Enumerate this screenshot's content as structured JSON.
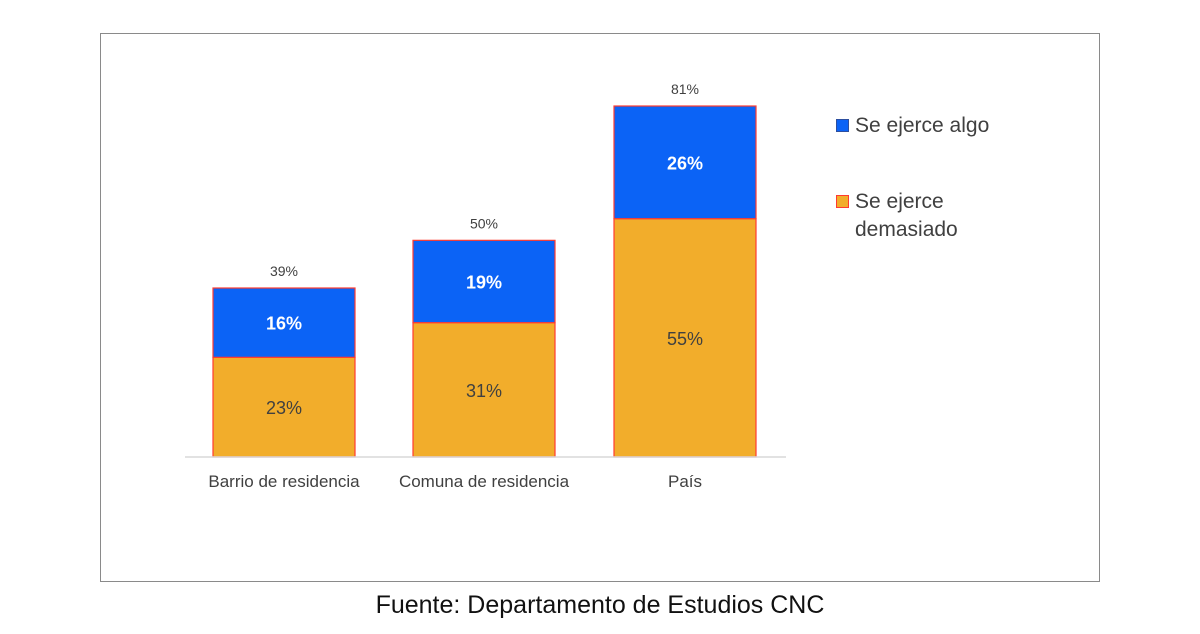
{
  "source_note": "Fuente: Departamento de Estudios CNC",
  "colors": {
    "frame": "#8a8a8a",
    "axis": "#d9d9d9",
    "blue": "#0b63f6",
    "orange": "#f2ad2b",
    "outline": "#ff3b30",
    "text": "#404040",
    "bar_label": "#ffffff",
    "orange_label": "#404040"
  },
  "chart_data": {
    "type": "bar",
    "stacked": true,
    "categories": [
      "Barrio de residencia",
      "Comuna de residencia",
      "País"
    ],
    "series": [
      {
        "name": "Se ejerce demasiado",
        "values": [
          23,
          31,
          55
        ],
        "labels": [
          "23%",
          "31%",
          "55%"
        ],
        "color": "#f2ad2b"
      },
      {
        "name": "Se ejerce algo",
        "values": [
          16,
          19,
          26
        ],
        "labels": [
          "16%",
          "19%",
          "26%"
        ],
        "color": "#0b63f6"
      }
    ],
    "totals": [
      39,
      50,
      81
    ],
    "total_labels": [
      "39%",
      "50%",
      "81%"
    ],
    "ylim": [
      0,
      81
    ],
    "grid": false,
    "legend": {
      "position": "right",
      "items": [
        {
          "label": "Se ejerce algo",
          "color": "#0b63f6"
        },
        {
          "label": "Se ejerce\ndemasiado",
          "color": "#f2ad2b"
        }
      ]
    }
  }
}
